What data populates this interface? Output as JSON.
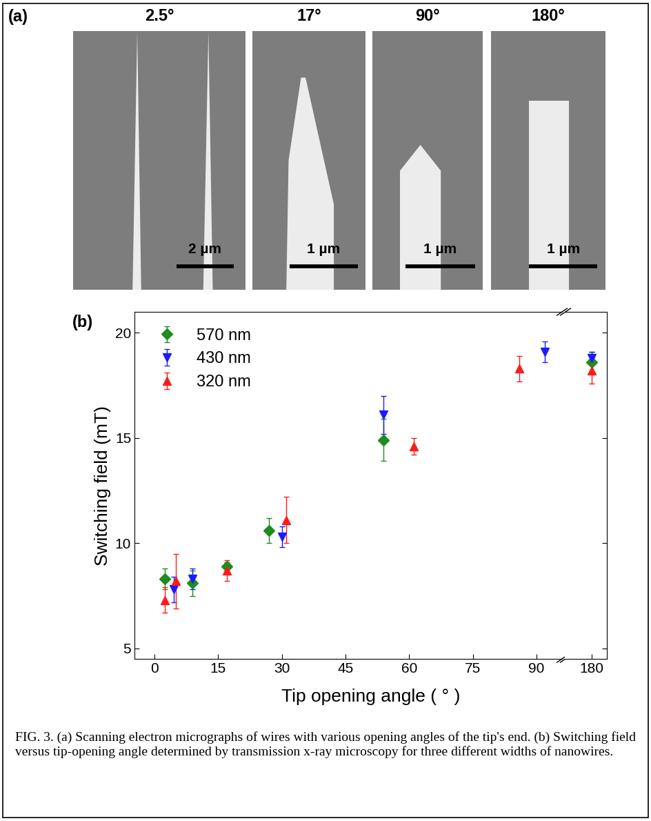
{
  "panel_a": {
    "label": "(a)",
    "images": [
      {
        "title": "2.5°",
        "scale_bar": "2 µm"
      },
      {
        "title": "17°",
        "scale_bar": "1 µm"
      },
      {
        "title": "90°",
        "scale_bar": "1 µm"
      },
      {
        "title": "180°",
        "scale_bar": "1 µm"
      }
    ]
  },
  "panel_b": {
    "label": "(b)",
    "x_label": "Tip opening angle ( ° )"
  },
  "chart_data": [
    {
      "type": "scatter",
      "y_label": "Switching field (mT)",
      "xlim": [
        -4.7,
        96
      ],
      "xticks": [
        0,
        15,
        30,
        45,
        60,
        75,
        90
      ],
      "ylim": [
        4.5,
        21
      ],
      "yticks": [
        5,
        10,
        15,
        20
      ],
      "legend": "upper left",
      "series": [
        {
          "name": "570 nm",
          "color": "#1e8c1e",
          "marker": "diamond",
          "x": [
            2.5,
            9,
            17,
            27,
            54
          ],
          "values": [
            8.3,
            8.1,
            8.9,
            10.6,
            14.9
          ],
          "errors": [
            0.5,
            0.6,
            0.2,
            0.6,
            1.0
          ]
        },
        {
          "name": "430 nm",
          "color": "#1a1aff",
          "marker": "triangle_down",
          "x": [
            4.5,
            9,
            30,
            54,
            92
          ],
          "values": [
            7.8,
            8.3,
            10.3,
            16.1,
            19.1
          ],
          "errors": [
            0.6,
            0.5,
            0.5,
            0.9,
            0.5
          ]
        },
        {
          "name": "320 nm",
          "color": "#ff1a1a",
          "marker": "triangle_up",
          "x": [
            2.5,
            5,
            17,
            31,
            61,
            86
          ],
          "values": [
            7.3,
            8.2,
            8.7,
            11.1,
            14.6,
            18.3
          ],
          "errors": [
            0.6,
            1.3,
            0.5,
            1.1,
            0.4,
            0.6
          ]
        }
      ]
    },
    {
      "type": "scatter",
      "tick_labels": "x",
      "xlim": [
        174,
        183.5
      ],
      "xticks": [
        180
      ],
      "ylim": [
        4.5,
        21
      ],
      "yticks": [
        5,
        10,
        15,
        20
      ],
      "series": [
        {
          "name": "570 nm",
          "color": "#1e8c1e",
          "marker": "diamond",
          "x": [
            180
          ],
          "values": [
            18.6
          ],
          "errors": [
            0.5
          ]
        },
        {
          "name": "430 nm",
          "color": "#1a1aff",
          "marker": "triangle_down",
          "x": [
            180
          ],
          "values": [
            18.8
          ],
          "errors": [
            0.3
          ]
        },
        {
          "name": "320 nm",
          "color": "#ff1a1a",
          "marker": "triangle_up",
          "x": [
            180
          ],
          "values": [
            18.2
          ],
          "errors": [
            0.6
          ]
        }
      ]
    }
  ],
  "caption": "FIG. 3. (a) Scanning electron micrographs of wires with various opening angles of the tip's end. (b) Switching field versus tip-opening angle determined by transmission x-ray microscopy for three different widths of nanowires."
}
